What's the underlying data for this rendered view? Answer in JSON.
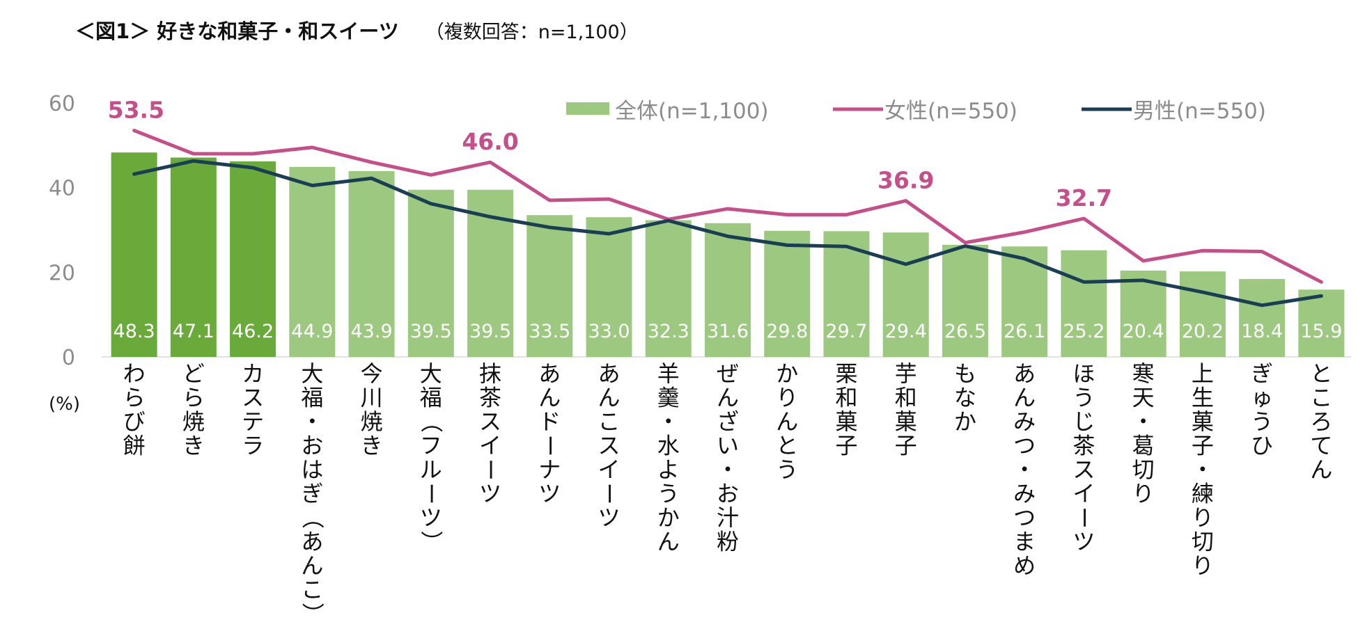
{
  "page": {
    "title": "＜図1＞ 好きな和菓子・和スイーツ",
    "subtitle": "（複数回答：n=1,100）"
  },
  "colors": {
    "bar_highlight": "#6aaa3a",
    "bar": "#9dc880",
    "female": "#c64f8a",
    "male": "#1a3e54",
    "axis_text": "#8c8c8c"
  },
  "chart_data": {
    "type": "bar",
    "title": "好きな和菓子・和スイーツ",
    "ylabel": "(%)",
    "ylim": [
      0,
      60
    ],
    "yticks": [
      0,
      20,
      40,
      60
    ],
    "highlight_count": 3,
    "categories": [
      "わらび餅",
      "どら焼き",
      "カステラ",
      "大福・おはぎ（あんこ）",
      "今川焼き",
      "大福（フルーツ）",
      "抹茶スイーツ",
      "あんドーナツ",
      "あんこスイーツ",
      "羊羹・水ようかん",
      "ぜんざい・お汁粉",
      "かりんとう",
      "栗和菓子",
      "芋和菓子",
      "もなか",
      "あんみつ・みつまめ",
      "ほうじ茶スイーツ",
      "寒天・葛切り",
      "上生菓子・練り切り",
      "ぎゅうひ",
      "ところてん"
    ],
    "series": [
      {
        "name": "全体(n=1,100)",
        "type": "bar",
        "values": [
          48.3,
          47.1,
          46.2,
          44.9,
          43.9,
          39.5,
          39.5,
          33.5,
          33.0,
          32.3,
          31.6,
          29.8,
          29.7,
          29.4,
          26.5,
          26.1,
          25.2,
          20.4,
          20.2,
          18.4,
          15.9
        ],
        "labels": [
          "48.3",
          "47.1",
          "46.2",
          "44.9",
          "43.9",
          "39.5",
          "39.5",
          "33.5",
          "33.0",
          "32.3",
          "31.6",
          "29.8",
          "29.7",
          "29.4",
          "26.5",
          "26.1",
          "25.2",
          "20.4",
          "20.2",
          "18.4",
          "15.9"
        ]
      },
      {
        "name": "女性(n=550)",
        "type": "line",
        "values": [
          53.5,
          48.0,
          48.0,
          49.5,
          46.0,
          43.0,
          46.0,
          37.0,
          37.3,
          32.5,
          35.0,
          33.6,
          33.6,
          36.9,
          27.0,
          29.5,
          32.7,
          22.7,
          25.1,
          24.9,
          17.7
        ]
      },
      {
        "name": "男性(n=550)",
        "type": "line",
        "values": [
          43.2,
          46.3,
          44.7,
          40.5,
          42.2,
          36.2,
          33.1,
          30.6,
          29.1,
          32.2,
          28.5,
          26.4,
          26.1,
          21.9,
          26.2,
          23.2,
          17.7,
          18.1,
          15.3,
          12.2,
          14.4
        ]
      }
    ],
    "annotations": [
      {
        "series": "女性(n=550)",
        "index": 0,
        "text": "53.5"
      },
      {
        "series": "女性(n=550)",
        "index": 6,
        "text": "46.0"
      },
      {
        "series": "女性(n=550)",
        "index": 13,
        "text": "36.9"
      },
      {
        "series": "女性(n=550)",
        "index": 16,
        "text": "32.7"
      }
    ],
    "legend": [
      {
        "name": "全体(n=1,100)",
        "symbol": "bar"
      },
      {
        "name": "女性(n=550)",
        "symbol": "line"
      },
      {
        "name": "男性(n=550)",
        "symbol": "line"
      }
    ],
    "legend_position": "top-right"
  }
}
